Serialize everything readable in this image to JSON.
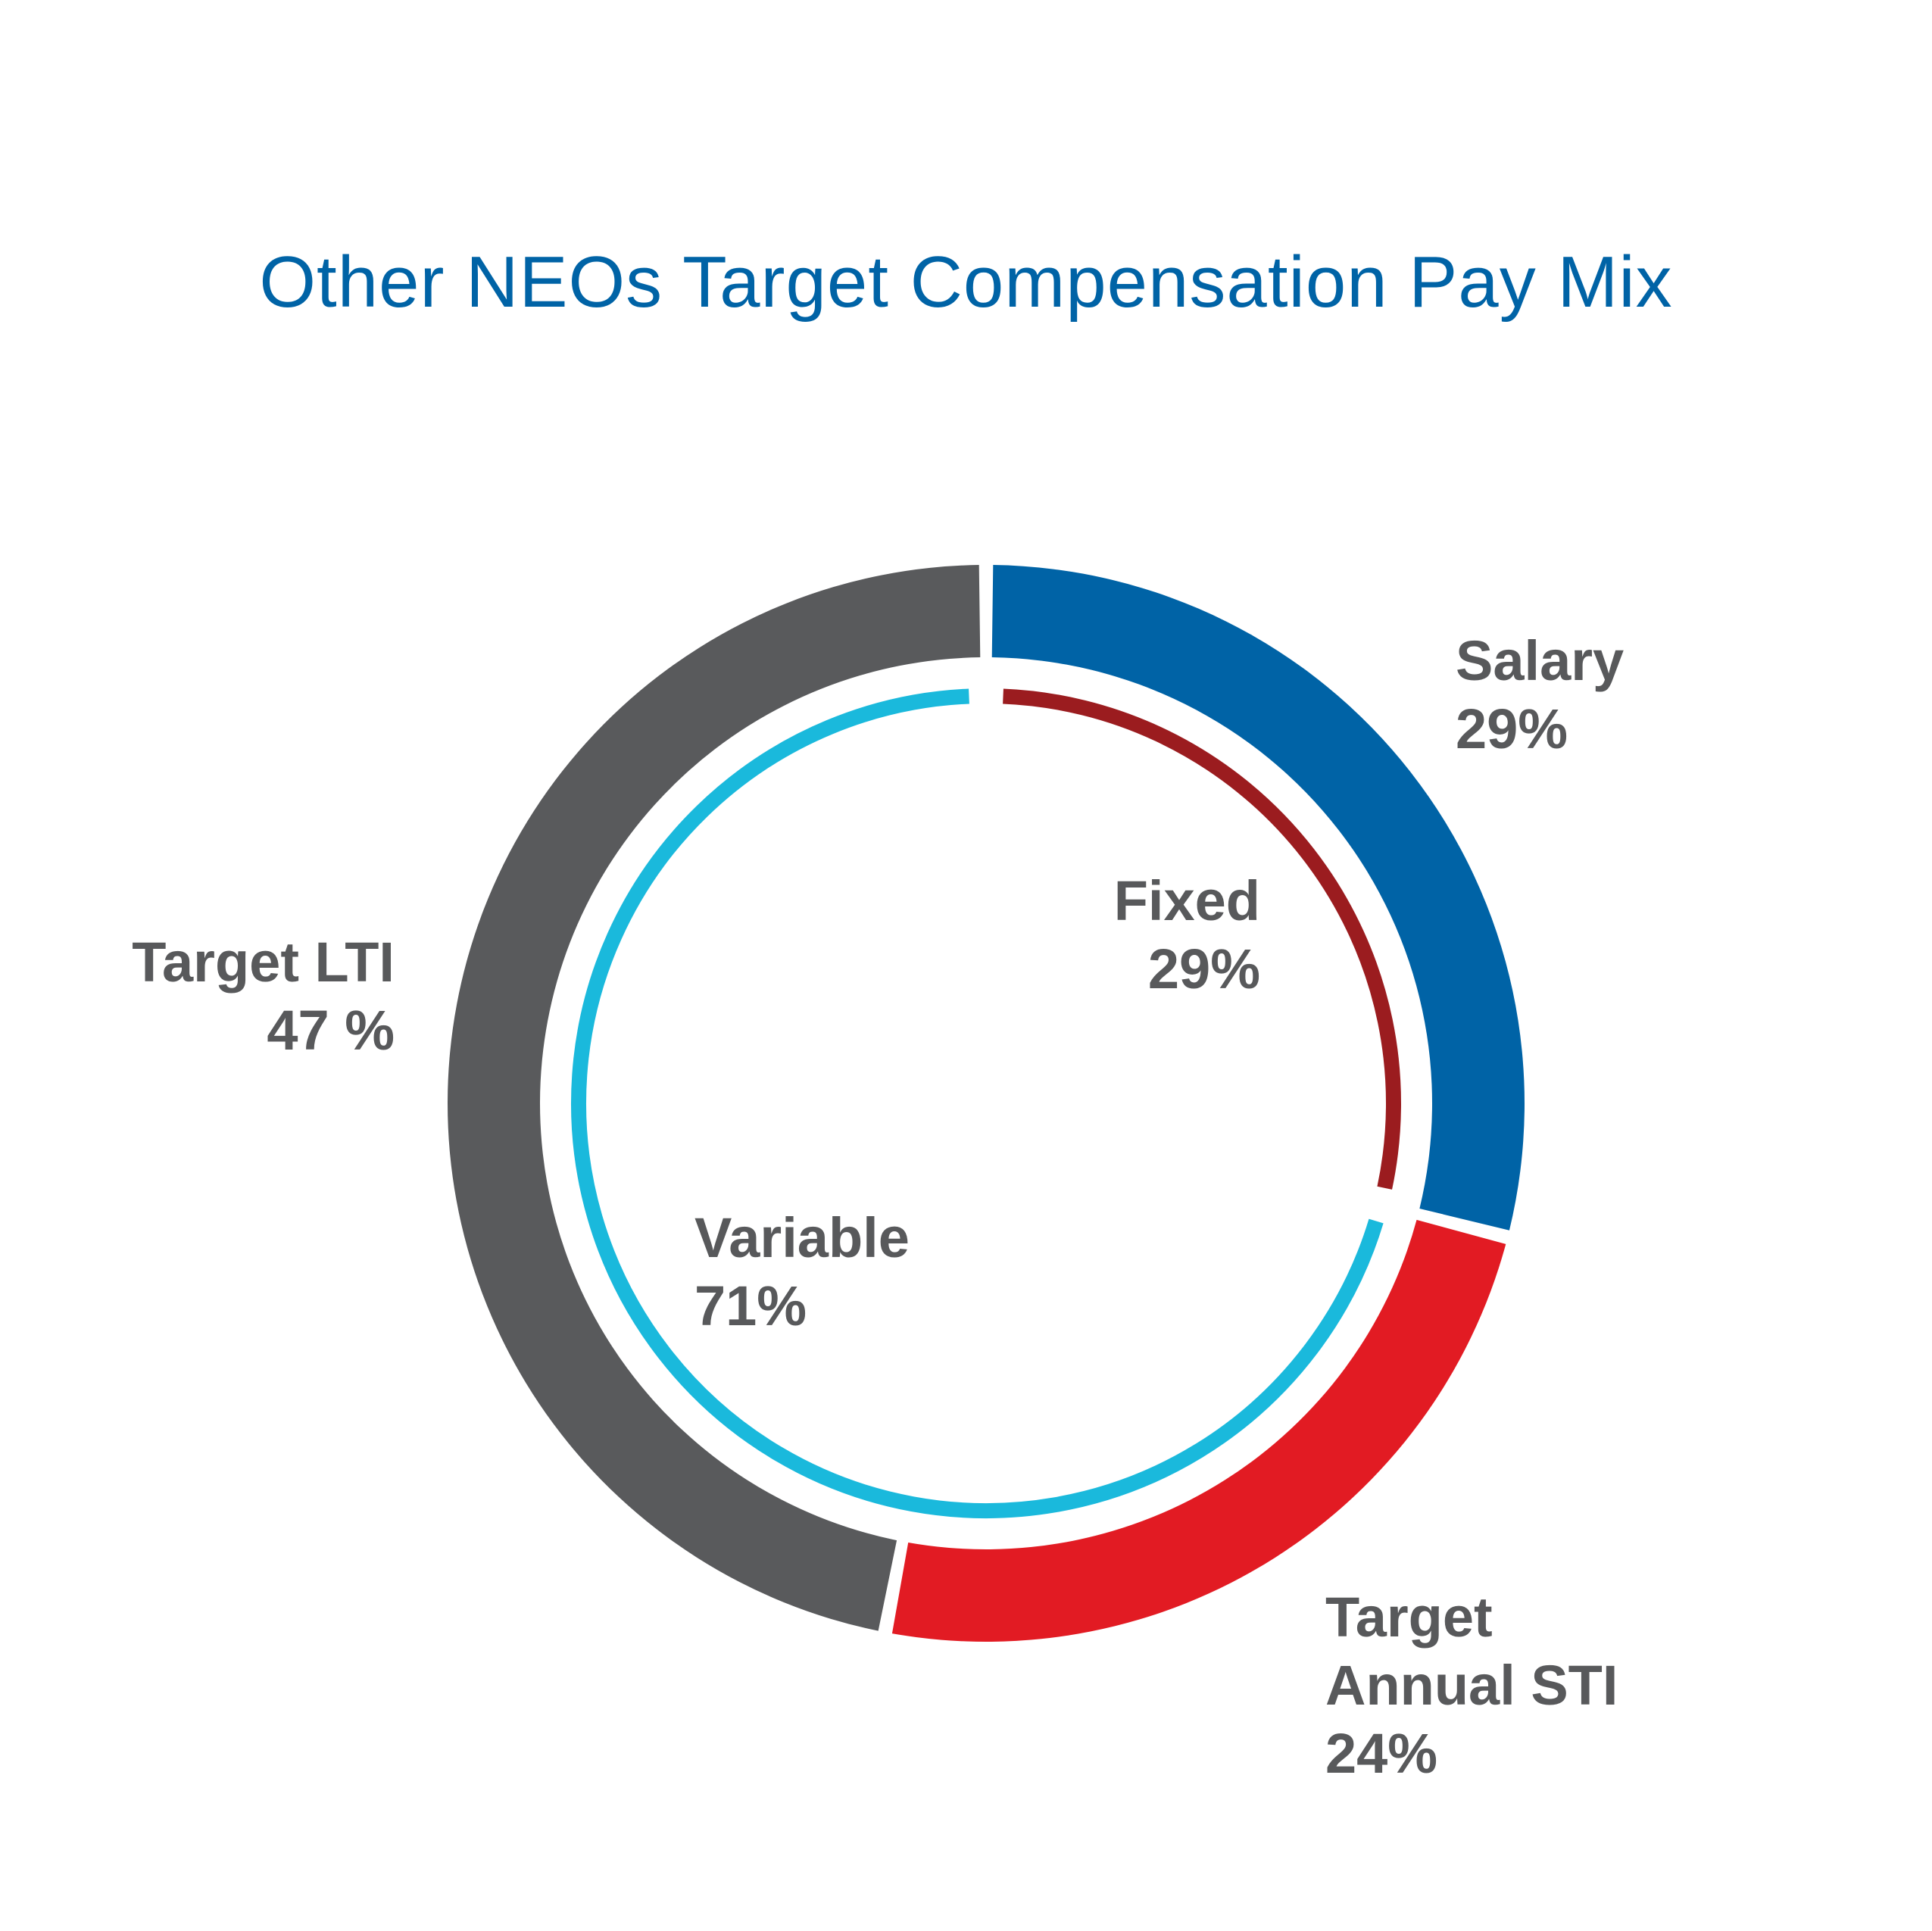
{
  "chart_data": {
    "type": "donut",
    "title": "Other NEOs Target Compensation Pay Mix",
    "outer_ring": {
      "slices": [
        {
          "name": "Salary",
          "label_lines": [
            "Salary",
            "29%"
          ],
          "value": 29,
          "color": "#0063a6"
        },
        {
          "name": "Target Annual STI",
          "label_lines": [
            "Target",
            "Annual STI",
            "24%"
          ],
          "value": 24,
          "color": "#e21b23"
        },
        {
          "name": "Target LTI",
          "label_lines": [
            "Target LTI",
            "47 %"
          ],
          "value": 47,
          "color": "#595a5c"
        }
      ]
    },
    "inner_ring": {
      "slices": [
        {
          "name": "Fixed",
          "label_lines": [
            "Fixed",
            "29%"
          ],
          "value": 29,
          "color": "#9b1c1f"
        },
        {
          "name": "Variable",
          "label_lines": [
            "Variable",
            "71%"
          ],
          "value": 71,
          "color": "#1ab9dc"
        }
      ]
    },
    "colors": {
      "title": "#0063a6",
      "label": "#58595b",
      "background": "#ffffff"
    }
  }
}
